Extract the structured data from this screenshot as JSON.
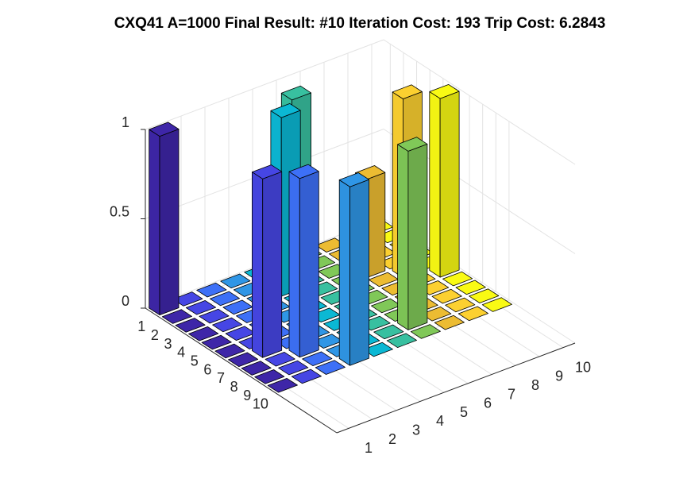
{
  "chart_data": {
    "type": "bar3",
    "title": "CXQ41 A=1000 Final Result: #10 Iteration Cost: 193 Trip Cost: 6.2843",
    "z": [
      [
        1,
        0,
        0,
        0,
        0,
        0,
        0,
        0,
        0,
        0
      ],
      [
        0,
        0,
        0,
        0,
        0,
        1,
        0,
        0,
        0,
        0
      ],
      [
        0,
        0,
        0,
        0,
        1,
        0,
        0,
        0,
        0,
        0
      ],
      [
        0,
        0,
        0,
        0,
        0,
        0,
        0,
        0.55,
        0,
        0
      ],
      [
        0,
        0,
        0,
        0,
        0,
        0,
        0,
        0,
        1,
        0
      ],
      [
        0,
        0,
        0,
        0,
        0,
        0,
        0,
        0,
        0,
        1
      ],
      [
        0,
        1,
        0,
        0,
        0,
        0,
        0,
        0,
        0,
        0
      ],
      [
        0,
        0,
        1,
        0,
        0,
        0,
        0,
        0,
        0,
        0
      ],
      [
        0,
        0,
        0,
        0,
        0,
        0,
        1,
        0,
        0,
        0
      ],
      [
        0,
        0,
        0,
        1,
        0,
        0,
        0,
        0,
        0,
        0
      ]
    ],
    "colors": [
      "#3e26a8",
      "#4646e4",
      "#3d70f7",
      "#2f96e6",
      "#0bb8d4",
      "#38c0a0",
      "#80c858",
      "#ecbc32",
      "#fcd030",
      "#f9fa14"
    ],
    "xlim": [
      0.5,
      10.5
    ],
    "xticks": [
      1,
      2,
      3,
      4,
      5,
      6,
      7,
      8,
      9,
      10
    ],
    "ylim": [
      0.5,
      15
    ],
    "yticks": [
      1,
      2,
      3,
      4,
      5,
      6,
      7,
      8,
      9,
      10
    ],
    "zlim": [
      0,
      1
    ],
    "zticks": [
      0,
      0.5,
      1
    ],
    "grid": true
  }
}
